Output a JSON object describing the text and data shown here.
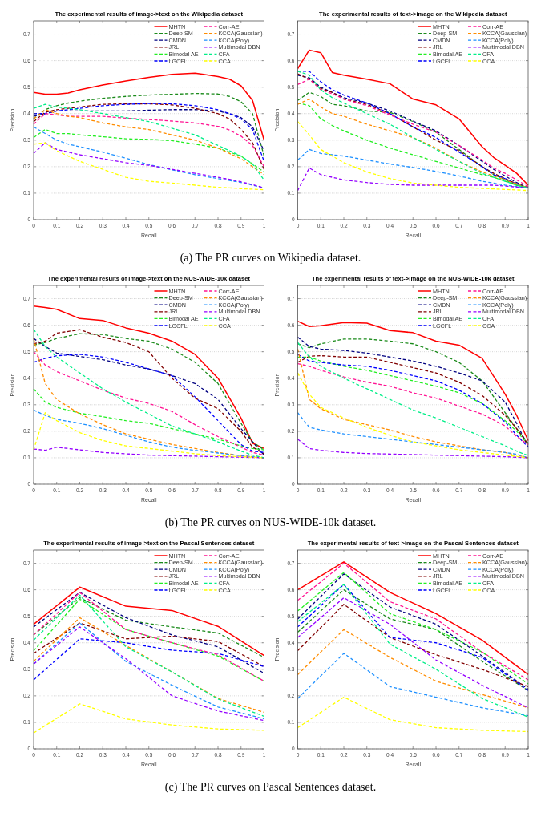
{
  "chart_data": [
    {
      "type": "line",
      "title": "The experimental results of image->text on the Wikipedia dataset",
      "xlabel": "Recall",
      "ylabel": "Precision",
      "xlim": [
        0,
        1
      ],
      "ylim": [
        0,
        0.75
      ],
      "xticks": [
        0,
        0.1,
        0.2,
        0.3,
        0.4,
        0.5,
        0.6,
        0.7,
        0.8,
        0.9,
        1
      ],
      "yticks": [
        0,
        0.1,
        0.2,
        0.3,
        0.4,
        0.5,
        0.6,
        0.7
      ],
      "grid": "y",
      "legend": "top right",
      "annotations": [
        "(a) The PR curves on Wikipedia dataset."
      ],
      "x": [
        0,
        0.05,
        0.1,
        0.15,
        0.2,
        0.3,
        0.4,
        0.5,
        0.6,
        0.7,
        0.8,
        0.85,
        0.9,
        0.95,
        1
      ],
      "series": [
        {
          "name": "MHTN",
          "color": "#ff0000",
          "line_style": "solid",
          "values": [
            0.48,
            0.473,
            0.473,
            0.478,
            0.49,
            0.508,
            0.523,
            0.537,
            0.548,
            0.553,
            0.54,
            0.53,
            0.505,
            0.45,
            0.3
          ]
        },
        {
          "name": "Deep-SM",
          "color": "#1a8a1a",
          "line_style": "dashed",
          "values": [
            0.38,
            0.415,
            0.43,
            0.44,
            0.447,
            0.458,
            0.465,
            0.47,
            0.473,
            0.476,
            0.474,
            0.465,
            0.445,
            0.4,
            0.24
          ]
        },
        {
          "name": "CMDN",
          "color": "#000080",
          "line_style": "dashed",
          "values": [
            0.39,
            0.4,
            0.41,
            0.41,
            0.41,
            0.41,
            0.41,
            0.413,
            0.415,
            0.415,
            0.41,
            0.4,
            0.385,
            0.35,
            0.26
          ]
        },
        {
          "name": "JRL",
          "color": "#800000",
          "line_style": "dashed",
          "values": [
            0.37,
            0.405,
            0.415,
            0.42,
            0.425,
            0.435,
            0.437,
            0.437,
            0.433,
            0.42,
            0.4,
            0.38,
            0.34,
            0.29,
            0.19
          ]
        },
        {
          "name": "Bimodal AE",
          "color": "#22ee22",
          "line_style": "dashed",
          "values": [
            0.31,
            0.34,
            0.325,
            0.325,
            0.32,
            0.313,
            0.305,
            0.303,
            0.298,
            0.285,
            0.27,
            0.255,
            0.24,
            0.21,
            0.18
          ]
        },
        {
          "name": "LGCFL",
          "color": "#0000ff",
          "line_style": "dashed",
          "values": [
            0.4,
            0.4,
            0.41,
            0.415,
            0.42,
            0.43,
            0.435,
            0.438,
            0.437,
            0.43,
            0.415,
            0.4,
            0.38,
            0.34,
            0.22
          ]
        },
        {
          "name": "Corr-AE",
          "color": "#ff1493",
          "line_style": "dashed",
          "values": [
            0.36,
            0.4,
            0.395,
            0.39,
            0.39,
            0.39,
            0.383,
            0.378,
            0.372,
            0.365,
            0.352,
            0.338,
            0.315,
            0.28,
            0.2
          ]
        },
        {
          "name": "KCCA(Gaussian)",
          "color": "#ff8c00",
          "line_style": "dashed",
          "values": [
            0.38,
            0.415,
            0.4,
            0.39,
            0.385,
            0.365,
            0.35,
            0.34,
            0.32,
            0.3,
            0.27,
            0.25,
            0.23,
            0.2,
            0.17
          ]
        },
        {
          "name": "KCCA(Poly)",
          "color": "#1e90ff",
          "line_style": "dashed",
          "values": [
            0.35,
            0.325,
            0.3,
            0.285,
            0.275,
            0.255,
            0.232,
            0.208,
            0.188,
            0.17,
            0.155,
            0.148,
            0.14,
            0.13,
            0.12
          ]
        },
        {
          "name": "Multimodal DBN",
          "color": "#9400ff",
          "line_style": "dashed",
          "values": [
            0.25,
            0.29,
            0.265,
            0.255,
            0.245,
            0.23,
            0.215,
            0.205,
            0.19,
            0.175,
            0.16,
            0.152,
            0.143,
            0.132,
            0.12
          ]
        },
        {
          "name": "CFA",
          "color": "#00ee88",
          "line_style": "dashed",
          "values": [
            0.42,
            0.435,
            0.425,
            0.42,
            0.415,
            0.4,
            0.385,
            0.37,
            0.345,
            0.32,
            0.28,
            0.26,
            0.24,
            0.21,
            0.15
          ]
        },
        {
          "name": "CCA",
          "color": "#ffff00",
          "line_style": "dashed",
          "values": [
            0.285,
            0.29,
            0.26,
            0.24,
            0.22,
            0.19,
            0.16,
            0.145,
            0.138,
            0.13,
            0.122,
            0.12,
            0.117,
            0.115,
            0.113
          ]
        }
      ]
    },
    {
      "type": "line",
      "title": "The experimental results of text->image on the Wikipedia dataset",
      "xlabel": "Recall",
      "ylabel": "Precision",
      "xlim": [
        0,
        1
      ],
      "ylim": [
        0,
        0.75
      ],
      "xticks": [
        0,
        0.1,
        0.2,
        0.3,
        0.4,
        0.5,
        0.6,
        0.7,
        0.8,
        0.9,
        1
      ],
      "yticks": [
        0,
        0.1,
        0.2,
        0.3,
        0.4,
        0.5,
        0.6,
        0.7
      ],
      "grid": "y",
      "legend": "top right",
      "x": [
        0,
        0.05,
        0.1,
        0.15,
        0.2,
        0.3,
        0.4,
        0.5,
        0.6,
        0.7,
        0.8,
        0.85,
        0.9,
        0.95,
        1
      ],
      "series": [
        {
          "name": "MHTN",
          "color": "#ff0000",
          "line_style": "solid",
          "values": [
            0.57,
            0.64,
            0.63,
            0.555,
            0.545,
            0.53,
            0.513,
            0.455,
            0.433,
            0.38,
            0.275,
            0.235,
            0.205,
            0.175,
            0.13
          ]
        },
        {
          "name": "Deep-SM",
          "color": "#1a8a1a",
          "line_style": "dashed",
          "values": [
            0.45,
            0.48,
            0.465,
            0.435,
            0.43,
            0.41,
            0.405,
            0.37,
            0.33,
            0.265,
            0.2,
            0.17,
            0.15,
            0.13,
            0.12
          ]
        },
        {
          "name": "CMDN",
          "color": "#000080",
          "line_style": "dashed",
          "values": [
            0.545,
            0.535,
            0.5,
            0.48,
            0.46,
            0.44,
            0.41,
            0.372,
            0.335,
            0.28,
            0.22,
            0.19,
            0.165,
            0.14,
            0.12
          ]
        },
        {
          "name": "JRL",
          "color": "#800000",
          "line_style": "dashed",
          "values": [
            0.55,
            0.53,
            0.495,
            0.48,
            0.455,
            0.435,
            0.4,
            0.35,
            0.3,
            0.26,
            0.2,
            0.175,
            0.155,
            0.135,
            0.12
          ]
        },
        {
          "name": "Bimodal AE",
          "color": "#22ee22",
          "line_style": "dashed",
          "values": [
            0.44,
            0.43,
            0.38,
            0.355,
            0.335,
            0.3,
            0.27,
            0.245,
            0.22,
            0.195,
            0.17,
            0.16,
            0.145,
            0.13,
            0.12
          ]
        },
        {
          "name": "LGCFL",
          "color": "#0000ff",
          "line_style": "dashed",
          "values": [
            0.56,
            0.56,
            0.52,
            0.49,
            0.47,
            0.44,
            0.4,
            0.35,
            0.31,
            0.255,
            0.2,
            0.17,
            0.155,
            0.135,
            0.12
          ]
        },
        {
          "name": "Corr-AE",
          "color": "#ff1493",
          "line_style": "dashed",
          "values": [
            0.51,
            0.53,
            0.49,
            0.475,
            0.455,
            0.43,
            0.395,
            0.36,
            0.33,
            0.28,
            0.225,
            0.195,
            0.175,
            0.15,
            0.125
          ]
        },
        {
          "name": "KCCA(Gaussian)",
          "color": "#ff8c00",
          "line_style": "dashed",
          "values": [
            0.435,
            0.455,
            0.425,
            0.4,
            0.39,
            0.36,
            0.335,
            0.31,
            0.27,
            0.22,
            0.18,
            0.165,
            0.15,
            0.135,
            0.12
          ]
        },
        {
          "name": "KCCA(Poly)",
          "color": "#1e90ff",
          "line_style": "dashed",
          "values": [
            0.225,
            0.265,
            0.25,
            0.245,
            0.24,
            0.225,
            0.21,
            0.197,
            0.182,
            0.165,
            0.145,
            0.138,
            0.13,
            0.125,
            0.12
          ]
        },
        {
          "name": "Multimodal DBN",
          "color": "#9400ff",
          "line_style": "dashed",
          "values": [
            0.11,
            0.195,
            0.17,
            0.16,
            0.15,
            0.14,
            0.133,
            0.13,
            0.13,
            0.13,
            0.13,
            0.13,
            0.127,
            0.123,
            0.12
          ]
        },
        {
          "name": "CFA",
          "color": "#00ee88",
          "line_style": "dashed",
          "values": [
            0.56,
            0.545,
            0.49,
            0.46,
            0.44,
            0.4,
            0.36,
            0.31,
            0.265,
            0.22,
            0.175,
            0.16,
            0.145,
            0.13,
            0.12
          ]
        },
        {
          "name": "CCA",
          "color": "#ffff00",
          "line_style": "dashed",
          "values": [
            0.37,
            0.32,
            0.265,
            0.24,
            0.215,
            0.18,
            0.155,
            0.138,
            0.13,
            0.122,
            0.118,
            0.116,
            0.114,
            0.112,
            0.11
          ]
        }
      ]
    },
    {
      "type": "line",
      "title": "The experimental results of image->text on the NUS-WIDE-10k dataset",
      "xlabel": "Recall",
      "ylabel": "Precision",
      "xlim": [
        0,
        1
      ],
      "ylim": [
        0,
        0.75
      ],
      "xticks": [
        0,
        0.1,
        0.2,
        0.3,
        0.4,
        0.5,
        0.6,
        0.7,
        0.8,
        0.9,
        1
      ],
      "yticks": [
        0,
        0.1,
        0.2,
        0.3,
        0.4,
        0.5,
        0.6,
        0.7
      ],
      "grid": "y",
      "legend": "top right",
      "annotations": [
        "(b) The PR curves on NUS-WIDE-10k dataset."
      ],
      "x": [
        0,
        0.05,
        0.1,
        0.2,
        0.3,
        0.4,
        0.5,
        0.6,
        0.7,
        0.8,
        0.9,
        0.95,
        1
      ],
      "series": [
        {
          "name": "MHTN",
          "color": "#ff0000",
          "line_style": "solid",
          "values": [
            0.672,
            0.667,
            0.66,
            0.625,
            0.618,
            0.59,
            0.57,
            0.54,
            0.49,
            0.4,
            0.25,
            0.155,
            0.135
          ]
        },
        {
          "name": "Deep-SM",
          "color": "#1a8a1a",
          "line_style": "dashed",
          "values": [
            0.525,
            0.535,
            0.55,
            0.568,
            0.565,
            0.55,
            0.54,
            0.51,
            0.46,
            0.38,
            0.23,
            0.16,
            0.13
          ]
        },
        {
          "name": "CMDN",
          "color": "#000080",
          "line_style": "dashed",
          "values": [
            0.55,
            0.52,
            0.495,
            0.482,
            0.47,
            0.45,
            0.435,
            0.41,
            0.38,
            0.32,
            0.21,
            0.16,
            0.11
          ]
        },
        {
          "name": "JRL",
          "color": "#800000",
          "line_style": "dashed",
          "values": [
            0.53,
            0.54,
            0.57,
            0.583,
            0.555,
            0.535,
            0.5,
            0.4,
            0.325,
            0.285,
            0.2,
            0.14,
            0.115
          ]
        },
        {
          "name": "Bimodal AE",
          "color": "#22ee22",
          "line_style": "dashed",
          "values": [
            0.36,
            0.31,
            0.29,
            0.268,
            0.255,
            0.24,
            0.23,
            0.21,
            0.19,
            0.17,
            0.145,
            0.135,
            0.13
          ]
        },
        {
          "name": "LGCFL",
          "color": "#0000ff",
          "line_style": "dashed",
          "values": [
            0.46,
            0.475,
            0.485,
            0.49,
            0.48,
            0.46,
            0.435,
            0.41,
            0.33,
            0.24,
            0.15,
            0.125,
            0.12
          ]
        },
        {
          "name": "Corr-AE",
          "color": "#ff1493",
          "line_style": "dashed",
          "values": [
            0.5,
            0.45,
            0.425,
            0.39,
            0.355,
            0.325,
            0.305,
            0.275,
            0.225,
            0.18,
            0.14,
            0.12,
            0.11
          ]
        },
        {
          "name": "KCCA(Gaussian)",
          "color": "#ff8c00",
          "line_style": "dashed",
          "values": [
            0.55,
            0.38,
            0.32,
            0.265,
            0.225,
            0.19,
            0.17,
            0.15,
            0.135,
            0.12,
            0.108,
            0.104,
            0.1
          ]
        },
        {
          "name": "KCCA(Poly)",
          "color": "#1e90ff",
          "line_style": "dashed",
          "values": [
            0.28,
            0.26,
            0.245,
            0.23,
            0.21,
            0.185,
            0.16,
            0.14,
            0.128,
            0.118,
            0.108,
            0.104,
            0.1
          ]
        },
        {
          "name": "Multimodal DBN",
          "color": "#9400ff",
          "line_style": "dashed",
          "values": [
            0.133,
            0.128,
            0.14,
            0.13,
            0.12,
            0.115,
            0.11,
            0.108,
            0.106,
            0.104,
            0.102,
            0.101,
            0.1
          ]
        },
        {
          "name": "CFA",
          "color": "#00ee88",
          "line_style": "dashed",
          "values": [
            0.585,
            0.52,
            0.48,
            0.42,
            0.36,
            0.31,
            0.265,
            0.22,
            0.19,
            0.16,
            0.125,
            0.11,
            0.1
          ]
        },
        {
          "name": "CCA",
          "color": "#ffff00",
          "line_style": "dashed",
          "values": [
            0.13,
            0.27,
            0.24,
            0.195,
            0.165,
            0.145,
            0.135,
            0.125,
            0.115,
            0.108,
            0.104,
            0.102,
            0.1
          ]
        }
      ]
    },
    {
      "type": "line",
      "title": "The experimental results of text->image on the NUS-WIDE-10k dataset",
      "xlabel": "Recall",
      "ylabel": "Precision",
      "xlim": [
        0,
        1
      ],
      "ylim": [
        0,
        0.75
      ],
      "xticks": [
        0,
        0.1,
        0.2,
        0.3,
        0.4,
        0.5,
        0.6,
        0.7,
        0.8,
        0.9,
        1
      ],
      "yticks": [
        0,
        0.1,
        0.2,
        0.3,
        0.4,
        0.5,
        0.6,
        0.7
      ],
      "grid": "y",
      "legend": "top right",
      "x": [
        0,
        0.05,
        0.1,
        0.2,
        0.3,
        0.4,
        0.5,
        0.6,
        0.7,
        0.8,
        0.9,
        0.95,
        1
      ],
      "series": [
        {
          "name": "MHTN",
          "color": "#ff0000",
          "line_style": "solid",
          "values": [
            0.615,
            0.595,
            0.598,
            0.61,
            0.608,
            0.58,
            0.572,
            0.54,
            0.525,
            0.475,
            0.34,
            0.26,
            0.165
          ]
        },
        {
          "name": "Deep-SM",
          "color": "#1a8a1a",
          "line_style": "dashed",
          "values": [
            0.53,
            0.515,
            0.53,
            0.548,
            0.548,
            0.54,
            0.53,
            0.5,
            0.46,
            0.39,
            0.27,
            0.21,
            0.155
          ]
        },
        {
          "name": "CMDN",
          "color": "#000080",
          "line_style": "dashed",
          "values": [
            0.555,
            0.52,
            0.51,
            0.505,
            0.495,
            0.48,
            0.465,
            0.445,
            0.42,
            0.39,
            0.31,
            0.23,
            0.14
          ]
        },
        {
          "name": "JRL",
          "color": "#800000",
          "line_style": "dashed",
          "values": [
            0.46,
            0.483,
            0.485,
            0.48,
            0.48,
            0.46,
            0.44,
            0.42,
            0.385,
            0.335,
            0.26,
            0.21,
            0.15
          ]
        },
        {
          "name": "Bimodal AE",
          "color": "#22ee22",
          "line_style": "dashed",
          "values": [
            0.48,
            0.48,
            0.465,
            0.445,
            0.43,
            0.41,
            0.39,
            0.37,
            0.345,
            0.305,
            0.24,
            0.2,
            0.15
          ]
        },
        {
          "name": "LGCFL",
          "color": "#0000ff",
          "line_style": "dashed",
          "values": [
            0.49,
            0.465,
            0.46,
            0.45,
            0.445,
            0.43,
            0.41,
            0.39,
            0.355,
            0.305,
            0.235,
            0.185,
            0.14
          ]
        },
        {
          "name": "Corr-AE",
          "color": "#ff1493",
          "line_style": "dashed",
          "values": [
            0.455,
            0.445,
            0.43,
            0.405,
            0.385,
            0.37,
            0.345,
            0.325,
            0.295,
            0.265,
            0.22,
            0.18,
            0.15
          ]
        },
        {
          "name": "KCCA(Gaussian)",
          "color": "#ff8c00",
          "line_style": "dashed",
          "values": [
            0.51,
            0.32,
            0.285,
            0.245,
            0.225,
            0.205,
            0.18,
            0.16,
            0.145,
            0.13,
            0.12,
            0.11,
            0.1
          ]
        },
        {
          "name": "KCCA(Poly)",
          "color": "#1e90ff",
          "line_style": "dashed",
          "values": [
            0.27,
            0.215,
            0.205,
            0.19,
            0.18,
            0.17,
            0.16,
            0.15,
            0.14,
            0.13,
            0.12,
            0.113,
            0.1
          ]
        },
        {
          "name": "Multimodal DBN",
          "color": "#9400ff",
          "line_style": "dashed",
          "values": [
            0.17,
            0.135,
            0.128,
            0.12,
            0.116,
            0.114,
            0.112,
            0.11,
            0.108,
            0.106,
            0.104,
            0.102,
            0.1
          ]
        },
        {
          "name": "CFA",
          "color": "#00ee88",
          "line_style": "dashed",
          "values": [
            0.535,
            0.48,
            0.445,
            0.4,
            0.36,
            0.32,
            0.28,
            0.25,
            0.215,
            0.18,
            0.145,
            0.125,
            0.108
          ]
        },
        {
          "name": "CCA",
          "color": "#ffff00",
          "line_style": "dashed",
          "values": [
            0.42,
            0.34,
            0.29,
            0.25,
            0.215,
            0.185,
            0.16,
            0.145,
            0.13,
            0.12,
            0.11,
            0.105,
            0.1
          ]
        }
      ]
    },
    {
      "type": "line",
      "title": "The experimental results of image->text on the Pascal Sentences dataset",
      "xlabel": "Recall",
      "ylabel": "Precision",
      "xlim": [
        0,
        1
      ],
      "ylim": [
        0,
        0.75
      ],
      "xticks": [
        0,
        0.1,
        0.2,
        0.3,
        0.4,
        0.5,
        0.6,
        0.7,
        0.8,
        0.9,
        1
      ],
      "yticks": [
        0,
        0.1,
        0.2,
        0.3,
        0.4,
        0.5,
        0.6,
        0.7
      ],
      "grid": "y",
      "legend": "top right",
      "annotations": [
        "(c) The PR curves on Pascal Sentences dataset."
      ],
      "x": [
        0,
        0.2,
        0.4,
        0.6,
        0.8,
        1
      ],
      "series": [
        {
          "name": "MHTN",
          "color": "#ff0000",
          "line_style": "solid",
          "values": [
            0.47,
            0.61,
            0.538,
            0.522,
            0.462,
            0.352
          ]
        },
        {
          "name": "Deep-SM",
          "color": "#1a8a1a",
          "line_style": "dashed",
          "values": [
            0.43,
            0.57,
            0.485,
            0.46,
            0.437,
            0.345
          ]
        },
        {
          "name": "CMDN",
          "color": "#000080",
          "line_style": "dashed",
          "values": [
            0.46,
            0.59,
            0.495,
            0.43,
            0.385,
            0.285
          ]
        },
        {
          "name": "JRL",
          "color": "#800000",
          "line_style": "dashed",
          "values": [
            0.36,
            0.475,
            0.415,
            0.425,
            0.405,
            0.31
          ]
        },
        {
          "name": "Bimodal AE",
          "color": "#22ee22",
          "line_style": "dashed",
          "values": [
            0.37,
            0.565,
            0.45,
            0.4,
            0.35,
            0.255
          ]
        },
        {
          "name": "LGCFL",
          "color": "#0000ff",
          "line_style": "dashed",
          "values": [
            0.26,
            0.415,
            0.4,
            0.372,
            0.36,
            0.31
          ]
        },
        {
          "name": "Corr-AE",
          "color": "#ff1493",
          "line_style": "dashed",
          "values": [
            0.43,
            0.59,
            0.45,
            0.4,
            0.355,
            0.255
          ]
        },
        {
          "name": "KCCA(Gaussian)",
          "color": "#ff8c00",
          "line_style": "dashed",
          "values": [
            0.33,
            0.495,
            0.39,
            0.29,
            0.19,
            0.138
          ]
        },
        {
          "name": "KCCA(Poly)",
          "color": "#1e90ff",
          "line_style": "dashed",
          "values": [
            0.32,
            0.475,
            0.33,
            0.24,
            0.158,
            0.113
          ]
        },
        {
          "name": "Multimodal DBN",
          "color": "#9400ff",
          "line_style": "dashed",
          "values": [
            0.32,
            0.46,
            0.34,
            0.2,
            0.143,
            0.107
          ]
        },
        {
          "name": "CFA",
          "color": "#00ee88",
          "line_style": "dashed",
          "values": [
            0.41,
            0.58,
            0.385,
            0.29,
            0.188,
            0.123
          ]
        },
        {
          "name": "CCA",
          "color": "#ffff00",
          "line_style": "dashed",
          "values": [
            0.06,
            0.17,
            0.113,
            0.09,
            0.075,
            0.07
          ]
        }
      ]
    },
    {
      "type": "line",
      "title": "The experimental results of text->image on the Pascal Sentences dataset",
      "xlabel": "Recall",
      "ylabel": "Precision",
      "xlim": [
        0,
        1
      ],
      "ylim": [
        0,
        0.75
      ],
      "xticks": [
        0,
        0.1,
        0.2,
        0.3,
        0.4,
        0.5,
        0.6,
        0.7,
        0.8,
        0.9,
        1
      ],
      "yticks": [
        0,
        0.1,
        0.2,
        0.3,
        0.4,
        0.5,
        0.6,
        0.7
      ],
      "grid": "y",
      "legend": "top right",
      "x": [
        0,
        0.2,
        0.4,
        0.6,
        0.8,
        1
      ],
      "series": [
        {
          "name": "MHTN",
          "color": "#ff0000",
          "line_style": "solid",
          "values": [
            0.6,
            0.705,
            0.59,
            0.51,
            0.41,
            0.28
          ]
        },
        {
          "name": "Deep-SM",
          "color": "#1a8a1a",
          "line_style": "dashed",
          "values": [
            0.44,
            0.6,
            0.49,
            0.45,
            0.33,
            0.22
          ]
        },
        {
          "name": "CMDN",
          "color": "#000080",
          "line_style": "dashed",
          "values": [
            0.49,
            0.66,
            0.535,
            0.47,
            0.35,
            0.225
          ]
        },
        {
          "name": "JRL",
          "color": "#800000",
          "line_style": "dashed",
          "values": [
            0.37,
            0.545,
            0.42,
            0.355,
            0.3,
            0.235
          ]
        },
        {
          "name": "Bimodal AE",
          "color": "#22ee22",
          "line_style": "dashed",
          "values": [
            0.52,
            0.665,
            0.51,
            0.45,
            0.365,
            0.245
          ]
        },
        {
          "name": "LGCFL",
          "color": "#0000ff",
          "line_style": "dashed",
          "values": [
            0.46,
            0.62,
            0.42,
            0.4,
            0.345,
            0.22
          ]
        },
        {
          "name": "Corr-AE",
          "color": "#ff1493",
          "line_style": "dashed",
          "values": [
            0.56,
            0.7,
            0.555,
            0.49,
            0.365,
            0.26
          ]
        },
        {
          "name": "KCCA(Gaussian)",
          "color": "#ff8c00",
          "line_style": "dashed",
          "values": [
            0.28,
            0.45,
            0.345,
            0.255,
            0.205,
            0.155
          ]
        },
        {
          "name": "KCCA(Poly)",
          "color": "#1e90ff",
          "line_style": "dashed",
          "values": [
            0.19,
            0.36,
            0.235,
            0.195,
            0.155,
            0.125
          ]
        },
        {
          "name": "Multimodal DBN",
          "color": "#9400ff",
          "line_style": "dashed",
          "values": [
            0.42,
            0.57,
            0.47,
            0.335,
            0.24,
            0.155
          ]
        },
        {
          "name": "CFA",
          "color": "#00ee88",
          "line_style": "dashed",
          "values": [
            0.48,
            0.62,
            0.395,
            0.3,
            0.19,
            0.12
          ]
        },
        {
          "name": "CCA",
          "color": "#ffff00",
          "line_style": "dashed",
          "values": [
            0.08,
            0.195,
            0.11,
            0.08,
            0.07,
            0.065
          ]
        }
      ]
    }
  ]
}
